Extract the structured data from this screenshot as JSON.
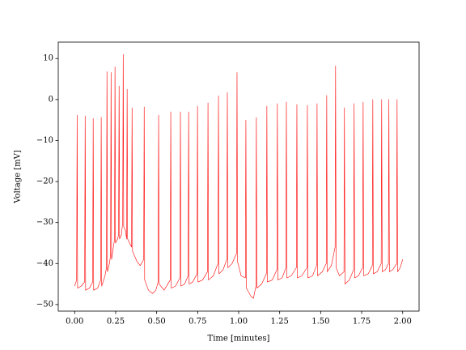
{
  "chart_data": {
    "type": "line",
    "xlabel": "Time [minutes]",
    "ylabel": "Voltage [mV]",
    "color": "#ff0000",
    "xlim": [
      -0.1,
      2.1
    ],
    "ylim": [
      -51.6,
      14
    ],
    "xticks": [
      {
        "value": 0,
        "label": "0.00"
      },
      {
        "value": 0.25,
        "label": "0.25"
      },
      {
        "value": 0.5,
        "label": "0.50"
      },
      {
        "value": 0.75,
        "label": "0.75"
      },
      {
        "value": 1,
        "label": "1.00"
      },
      {
        "value": 1.25,
        "label": "1.25"
      },
      {
        "value": 1.5,
        "label": "1.50"
      },
      {
        "value": 1.75,
        "label": "1.75"
      },
      {
        "value": 2,
        "label": "2.00"
      }
    ],
    "yticks": [
      {
        "value": -50,
        "label": "−50"
      },
      {
        "value": -40,
        "label": "−40"
      },
      {
        "value": -30,
        "label": "−30"
      },
      {
        "value": -20,
        "label": "−20"
      },
      {
        "value": -10,
        "label": "−10"
      },
      0,
      10
    ],
    "x": [
      0.0,
      0.012,
      0.015,
      0.018,
      0.04,
      0.061,
      0.064,
      0.067,
      0.09,
      0.11,
      0.113,
      0.116,
      0.14,
      0.159,
      0.162,
      0.165,
      0.185,
      0.194,
      0.197,
      0.2,
      0.212,
      0.219,
      0.222,
      0.225,
      0.24,
      0.243,
      0.246,
      0.249,
      0.262,
      0.268,
      0.271,
      0.274,
      0.285,
      0.293,
      0.296,
      0.299,
      0.31,
      0.317,
      0.32,
      0.323,
      0.335,
      0.347,
      0.35,
      0.353,
      0.38,
      0.4,
      0.421,
      0.424,
      0.427,
      0.45,
      0.475,
      0.495,
      0.509,
      0.512,
      0.515,
      0.545,
      0.583,
      0.586,
      0.589,
      0.615,
      0.642,
      0.645,
      0.648,
      0.67,
      0.692,
      0.695,
      0.698,
      0.72,
      0.746,
      0.749,
      0.752,
      0.78,
      0.81,
      0.813,
      0.816,
      0.845,
      0.874,
      0.877,
      0.88,
      0.905,
      0.928,
      0.931,
      0.934,
      0.96,
      0.987,
      0.99,
      0.993,
      1.015,
      1.041,
      1.044,
      1.047,
      1.075,
      1.09,
      1.105,
      1.108,
      1.111,
      1.14,
      1.169,
      1.172,
      1.175,
      1.205,
      1.233,
      1.236,
      1.239,
      1.265,
      1.288,
      1.291,
      1.294,
      1.32,
      1.352,
      1.355,
      1.358,
      1.385,
      1.416,
      1.419,
      1.422,
      1.45,
      1.475,
      1.478,
      1.481,
      1.51,
      1.534,
      1.537,
      1.54,
      1.565,
      1.588,
      1.591,
      1.594,
      1.615,
      1.642,
      1.645,
      1.648,
      1.675,
      1.701,
      1.704,
      1.707,
      1.73,
      1.756,
      1.759,
      1.762,
      1.79,
      1.815,
      1.818,
      1.821,
      1.845,
      1.869,
      1.872,
      1.875,
      1.895,
      1.913,
      1.916,
      1.919,
      1.94,
      1.963,
      1.966,
      1.969,
      1.985,
      2.0
    ],
    "values": [
      -45.5,
      -44,
      -3.8,
      -46,
      -45.5,
      -44.5,
      -4,
      -46.5,
      -46,
      -44.5,
      -4.6,
      -46.5,
      -46,
      -44,
      -4.3,
      -45.5,
      -43,
      -41,
      6.8,
      -42,
      -40,
      -38,
      6.6,
      -39,
      -35,
      -34,
      8,
      -35,
      -34,
      -33,
      3.3,
      -34,
      -33,
      -30,
      11,
      -31,
      -32,
      -34,
      2.5,
      -34,
      -35,
      -36,
      -2,
      -37,
      -39.5,
      -40.5,
      -39,
      -1.8,
      -44,
      -46.5,
      -47.3,
      -46.5,
      -44.5,
      -3.8,
      -45,
      -46.5,
      -44,
      -3,
      -46,
      -45.5,
      -43.5,
      -3,
      -45.5,
      -45,
      -43,
      -3,
      -45,
      -44.5,
      -42.5,
      -1.6,
      -44.5,
      -44,
      -42,
      -0.8,
      -44,
      -43,
      -40,
      0.9,
      -42.5,
      -41.5,
      -39,
      1.7,
      -41,
      -40,
      -37.5,
      6.6,
      -39.5,
      -43,
      -43.5,
      -5,
      -46,
      -48,
      -48.5,
      -45.5,
      -4.4,
      -46,
      -45,
      -42.5,
      -1.6,
      -44.5,
      -44,
      -41.5,
      -1,
      -44,
      -43.5,
      -41,
      -0.6,
      -43.5,
      -43,
      -41,
      -1.2,
      -43.5,
      -43,
      -41,
      -1.4,
      -43.5,
      -43,
      -40.5,
      -1,
      -43,
      -42,
      -40,
      1,
      -42,
      -40.5,
      -36,
      8.2,
      -41,
      -43,
      -42,
      -2,
      -45,
      -44,
      -41.5,
      -1,
      -43.5,
      -43,
      -41,
      -0.6,
      -43,
      -42.5,
      -40.5,
      0,
      -42.5,
      -42,
      -40,
      0,
      -42,
      -41.5,
      -40,
      0,
      -42,
      -41.5,
      -40,
      0,
      -42,
      -41,
      -39
    ]
  }
}
